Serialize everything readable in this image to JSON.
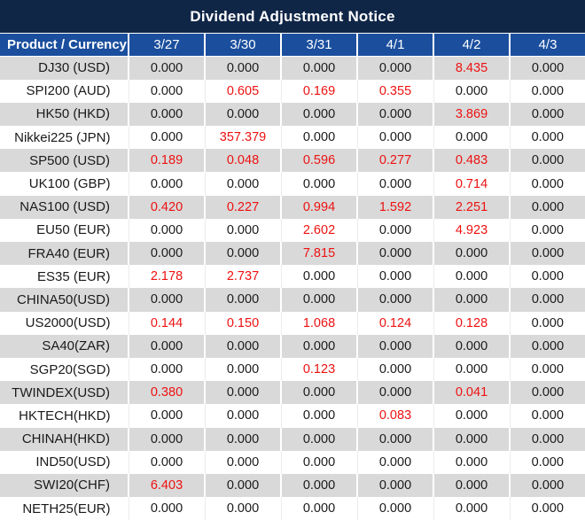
{
  "title": "Dividend Adjustment Notice",
  "colors": {
    "title_bg": "#102647",
    "header_bg": "#1b4f9e",
    "header_text": "#ffffff",
    "alt_row_bg": "#d9d9d9",
    "row_bg": "#ffffff",
    "zero_value_text": "#1a1a1a",
    "nonzero_value_text": "#ee1111"
  },
  "table": {
    "corner_header": "Product / Currency",
    "date_headers": [
      "3/27",
      "3/30",
      "3/31",
      "4/1",
      "4/2",
      "4/3"
    ],
    "rows": [
      {
        "product": "DJ30 (USD)",
        "values": [
          "0.000",
          "0.000",
          "0.000",
          "0.000",
          "8.435",
          "0.000"
        ]
      },
      {
        "product": "SPI200 (AUD)",
        "values": [
          "0.000",
          "0.605",
          "0.169",
          "0.355",
          "0.000",
          "0.000"
        ]
      },
      {
        "product": "HK50 (HKD)",
        "values": [
          "0.000",
          "0.000",
          "0.000",
          "0.000",
          "3.869",
          "0.000"
        ]
      },
      {
        "product": "Nikkei225 (JPN)",
        "values": [
          "0.000",
          "357.379",
          "0.000",
          "0.000",
          "0.000",
          "0.000"
        ]
      },
      {
        "product": "SP500 (USD)",
        "values": [
          "0.189",
          "0.048",
          "0.596",
          "0.277",
          "0.483",
          "0.000"
        ]
      },
      {
        "product": "UK100 (GBP)",
        "values": [
          "0.000",
          "0.000",
          "0.000",
          "0.000",
          "0.714",
          "0.000"
        ]
      },
      {
        "product": "NAS100 (USD)",
        "values": [
          "0.420",
          "0.227",
          "0.994",
          "1.592",
          "2.251",
          "0.000"
        ]
      },
      {
        "product": "EU50 (EUR)",
        "values": [
          "0.000",
          "0.000",
          "2.602",
          "0.000",
          "4.923",
          "0.000"
        ]
      },
      {
        "product": "FRA40 (EUR)",
        "values": [
          "0.000",
          "0.000",
          "7.815",
          "0.000",
          "0.000",
          "0.000"
        ]
      },
      {
        "product": "ES35 (EUR)",
        "values": [
          "2.178",
          "2.737",
          "0.000",
          "0.000",
          "0.000",
          "0.000"
        ]
      },
      {
        "product": "CHINA50(USD)",
        "values": [
          "0.000",
          "0.000",
          "0.000",
          "0.000",
          "0.000",
          "0.000"
        ]
      },
      {
        "product": "US2000(USD)",
        "values": [
          "0.144",
          "0.150",
          "1.068",
          "0.124",
          "0.128",
          "0.000"
        ]
      },
      {
        "product": "SA40(ZAR)",
        "values": [
          "0.000",
          "0.000",
          "0.000",
          "0.000",
          "0.000",
          "0.000"
        ]
      },
      {
        "product": "SGP20(SGD)",
        "values": [
          "0.000",
          "0.000",
          "0.123",
          "0.000",
          "0.000",
          "0.000"
        ]
      },
      {
        "product": "TWINDEX(USD)",
        "values": [
          "0.380",
          "0.000",
          "0.000",
          "0.000",
          "0.041",
          "0.000"
        ]
      },
      {
        "product": "HKTECH(HKD)",
        "values": [
          "0.000",
          "0.000",
          "0.000",
          "0.083",
          "0.000",
          "0.000"
        ]
      },
      {
        "product": "CHINAH(HKD)",
        "values": [
          "0.000",
          "0.000",
          "0.000",
          "0.000",
          "0.000",
          "0.000"
        ]
      },
      {
        "product": "IND50(USD)",
        "values": [
          "0.000",
          "0.000",
          "0.000",
          "0.000",
          "0.000",
          "0.000"
        ]
      },
      {
        "product": "SWI20(CHF)",
        "values": [
          "6.403",
          "0.000",
          "0.000",
          "0.000",
          "0.000",
          "0.000"
        ]
      },
      {
        "product": "NETH25(EUR)",
        "values": [
          "0.000",
          "0.000",
          "0.000",
          "0.000",
          "0.000",
          "0.000"
        ]
      }
    ]
  }
}
